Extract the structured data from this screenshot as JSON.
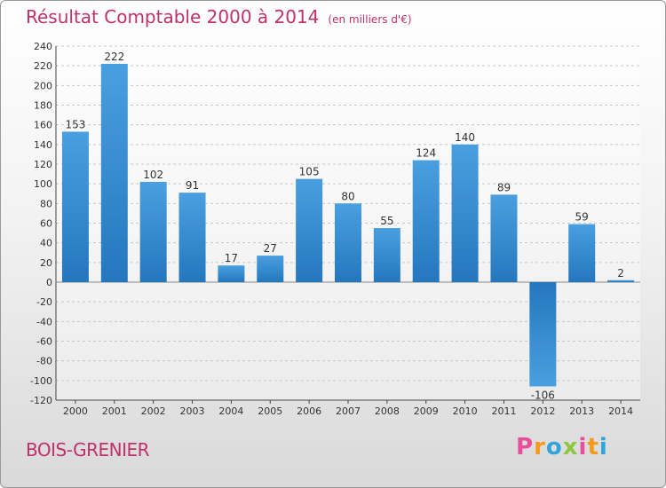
{
  "title": "Résultat Comptable 2000 à 2014",
  "unit": "(en milliers d'€)",
  "place": "BOIS-GRENIER",
  "logo": {
    "letters": [
      "P",
      "r",
      "o",
      "x",
      "i",
      "t",
      "i"
    ],
    "colors": [
      "#e94e9d",
      "#f39a1e",
      "#2fa5dc",
      "#8dc63f",
      "#e94e9d",
      "#f39a1e",
      "#2fa5dc"
    ]
  },
  "colors": {
    "bar": "#4a9fe0",
    "bar_dark": "#2477bd",
    "title": "#c0306a"
  },
  "chart_data": {
    "type": "bar",
    "categories": [
      "2000",
      "2001",
      "2002",
      "2003",
      "2004",
      "2005",
      "2006",
      "2007",
      "2008",
      "2009",
      "2010",
      "2011",
      "2012",
      "2013",
      "2014"
    ],
    "values": [
      153,
      222,
      102,
      91,
      17,
      27,
      105,
      80,
      55,
      124,
      140,
      89,
      -106,
      59,
      2
    ],
    "ylim": [
      -120,
      240
    ],
    "yticks": [
      240,
      220,
      200,
      180,
      160,
      140,
      120,
      100,
      80,
      60,
      40,
      20,
      0,
      -20,
      -40,
      -60,
      -80,
      -100,
      -120
    ],
    "grid": true
  }
}
